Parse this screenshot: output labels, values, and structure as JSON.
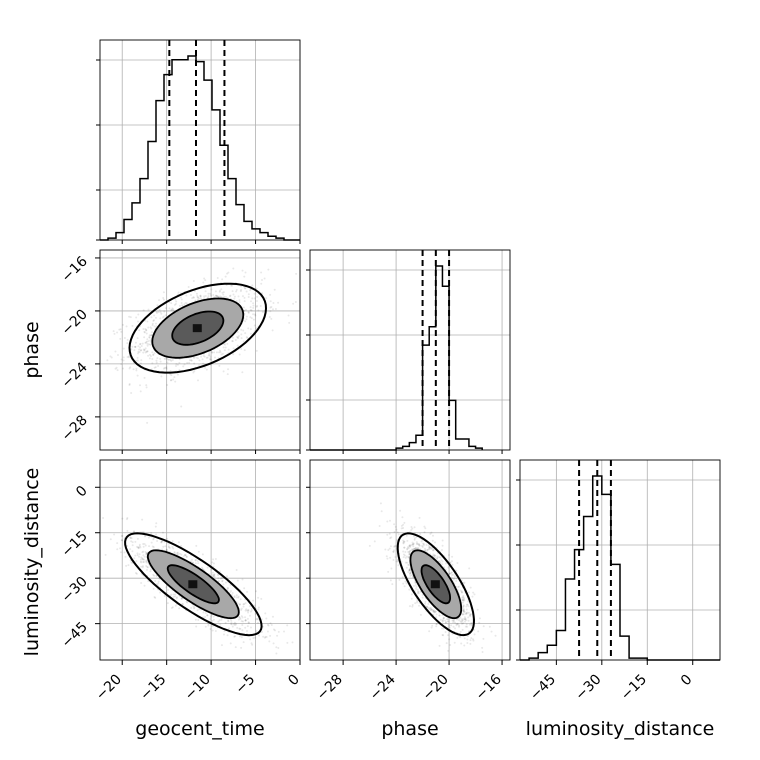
{
  "chart_data": {
    "type": "corner",
    "parameters": [
      "geocent_time",
      "phase",
      "luminosity_distance"
    ],
    "axis_labels": {
      "x": [
        "geocent_time",
        "phase",
        "luminosity_distance"
      ],
      "y": [
        "phase",
        "luminosity_distance"
      ]
    },
    "ranges": {
      "geocent_time": [
        -22.5,
        0
      ],
      "phase": [
        -30.5,
        -15.4
      ],
      "luminosity_distance": [
        -57,
        9
      ]
    },
    "ticks": {
      "geocent_time": [
        -20,
        -15,
        -10,
        -5,
        0
      ],
      "phase": [
        -28,
        -24,
        -20,
        -16
      ],
      "luminosity_distance": [
        -45,
        -30,
        -15,
        0
      ]
    },
    "tick_labels": {
      "geocent_time": [
        "−20",
        "−15",
        "−10",
        "−5",
        "0"
      ],
      "phase": [
        "−28",
        "−24",
        "−20",
        "−16"
      ],
      "luminosity_distance": [
        "−45",
        "−30",
        "−15",
        "0"
      ]
    },
    "quantiles": {
      "geocent_time": [
        -14.7,
        -11.7,
        -8.5
      ],
      "phase": [
        -22.0,
        -21.0,
        -20.0
      ],
      "luminosity_distance": [
        -37.5,
        -31.5,
        -27.0
      ]
    },
    "histograms": {
      "geocent_time": {
        "bin_edges": [
          -22.5,
          -21.6,
          -20.7,
          -19.8,
          -18.9,
          -18.0,
          -17.1,
          -16.2,
          -15.3,
          -14.4,
          -13.5,
          -12.6,
          -11.7,
          -10.8,
          -9.9,
          -9.0,
          -8.1,
          -7.2,
          -6.3,
          -5.4,
          -4.5,
          -3.6,
          -2.7,
          -1.8,
          -0.9,
          0.0
        ],
        "heights": [
          0,
          1,
          4,
          11,
          20,
          33,
          53,
          75,
          89,
          97,
          97,
          99,
          96,
          86,
          70,
          51,
          33,
          19,
          10,
          6,
          4,
          2,
          1,
          0,
          0
        ]
      },
      "phase": {
        "bin_edges": [
          -30.5,
          -30.0,
          -29.5,
          -29.0,
          -28.5,
          -28.0,
          -27.5,
          -27.0,
          -26.5,
          -26.0,
          -25.5,
          -25.0,
          -24.5,
          -24.0,
          -23.5,
          -23.0,
          -22.5,
          -22.0,
          -21.5,
          -21.0,
          -20.5,
          -20.0,
          -19.5,
          -18.5,
          -18.0,
          -17.5
        ],
        "heights": [
          0,
          0,
          0,
          0,
          0,
          0,
          0,
          0,
          0,
          0,
          0,
          0,
          0,
          1,
          2,
          4,
          8,
          57,
          67,
          100,
          89,
          27,
          6,
          2,
          1
        ]
      },
      "luminosity_distance": {
        "bin_edges": [
          -57,
          -54,
          -51,
          -48,
          -45,
          -42,
          -39,
          -36,
          -33,
          -30,
          -27,
          -24,
          -21,
          -18,
          -15,
          -12,
          -9,
          -6,
          -3,
          0,
          3,
          6,
          9
        ],
        "heights": [
          0,
          1,
          4,
          8,
          16,
          44,
          60,
          78,
          100,
          90,
          52,
          13,
          1,
          1,
          0,
          0,
          0,
          0,
          0,
          0,
          0,
          0
        ]
      }
    },
    "panels_2d": [
      {
        "x": "geocent_time",
        "y": "phase"
      },
      {
        "x": "geocent_time",
        "y": "luminosity_distance"
      },
      {
        "x": "phase",
        "y": "luminosity_distance"
      }
    ],
    "grid": true
  }
}
